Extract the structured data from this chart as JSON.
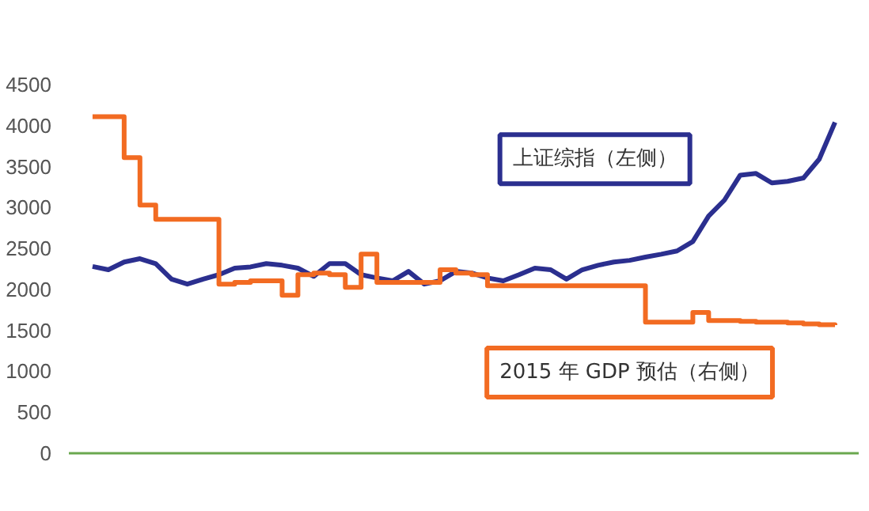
{
  "chart_data": {
    "type": "line",
    "categories": [
      null,
      null,
      null,
      null,
      null,
      null,
      null,
      null,
      null,
      null,
      null,
      null,
      null,
      null,
      null,
      null,
      null,
      null,
      null,
      null,
      null,
      null,
      null,
      null,
      null,
      null,
      null,
      null,
      null,
      null,
      null,
      null,
      null,
      null,
      null,
      null,
      null,
      null,
      null,
      null,
      null,
      null,
      null,
      null,
      null,
      null,
      null,
      null
    ],
    "series": [
      {
        "name": "上证综指（左侧）",
        "color": "#2b2f8f",
        "values": [
          2280,
          2240,
          2335,
          2375,
          2315,
          2125,
          2065,
          2125,
          2180,
          2260,
          2275,
          2315,
          2295,
          2260,
          2160,
          2315,
          2315,
          2180,
          2140,
          2105,
          2220,
          2065,
          2105,
          2220,
          2200,
          2140,
          2105,
          2180,
          2260,
          2240,
          2125,
          2240,
          2295,
          2335,
          2355,
          2395,
          2430,
          2470,
          2585,
          2895,
          3090,
          3395,
          3415,
          3300,
          3320,
          3360,
          3590,
          4040
        ]
      },
      {
        "name": "2015 年 GDP 预估（右侧）",
        "type": "step",
        "color": "#f26b22",
        "values": [
          4110,
          4110,
          3610,
          3030,
          2855,
          2855,
          2855,
          2855,
          2065,
          2085,
          2105,
          2105,
          1930,
          2180,
          2200,
          2180,
          2025,
          2430,
          2085,
          2085,
          2085,
          2085,
          2240,
          2200,
          2180,
          2045,
          2045,
          2045,
          2045,
          2045,
          2045,
          2045,
          2045,
          2045,
          2045,
          1600,
          1600,
          1600,
          1720,
          1620,
          1620,
          1610,
          1600,
          1600,
          1590,
          1580,
          1570,
          1565
        ]
      }
    ],
    "ylim": [
      0,
      4500
    ],
    "yticks": [
      0,
      500,
      1000,
      1500,
      2000,
      2500,
      3000,
      3500,
      4000,
      4500
    ],
    "tick_labels": "y",
    "grid": false,
    "marker": "none",
    "line_style": "solid"
  }
}
